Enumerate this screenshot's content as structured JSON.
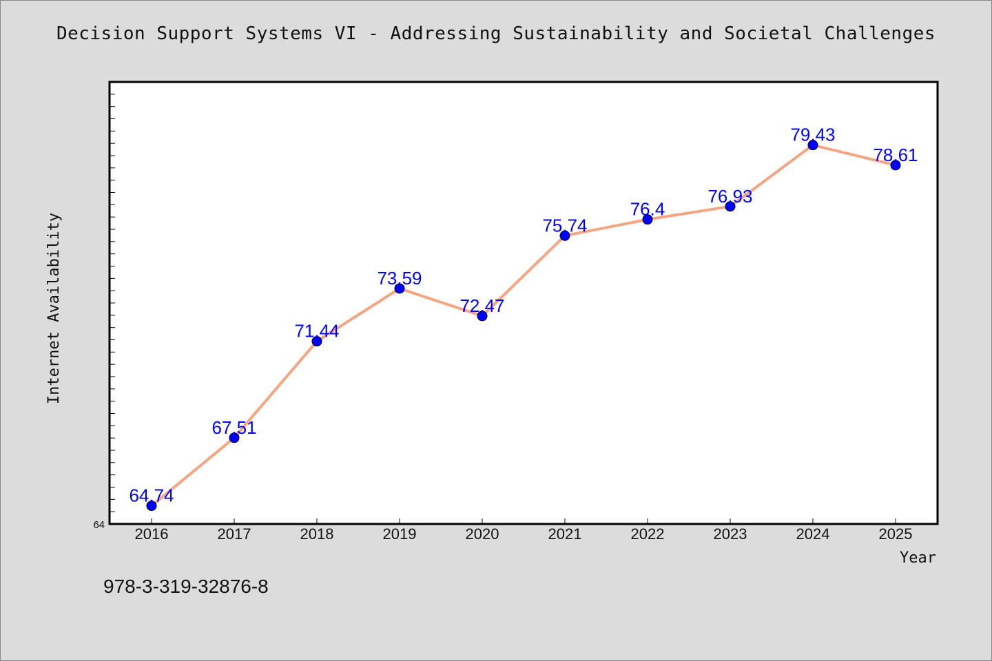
{
  "header": {
    "title": "Decision Support Systems VI - Addressing Sustainability and Societal Challenges"
  },
  "footer": {
    "isbn": "978-3-319-32876-8"
  },
  "colors": {
    "background": "#dcdcdc",
    "plot_background": "#ffffff",
    "line": "#f4a582",
    "marker": "#0000ff",
    "label": "#0000ff"
  },
  "chart_data": {
    "type": "line",
    "title": "Decision Support Systems VI - Addressing Sustainability and Societal Challenges",
    "xlabel": "Year",
    "ylabel": "Internet Availability",
    "x": [
      "2016",
      "2017",
      "2018",
      "2019",
      "2020",
      "2021",
      "2022",
      "2023",
      "2024",
      "2025"
    ],
    "series": [
      {
        "values": [
          64.74,
          67.51,
          71.44,
          73.59,
          72.47,
          75.74,
          76.4,
          76.93,
          79.43,
          78.61
        ]
      }
    ],
    "data_labels": [
      "64.74",
      "67.51",
      "71.44",
      "73.59",
      "72.47",
      "75.74",
      "76.4",
      "76.93",
      "79.43",
      "78.61"
    ],
    "ylim": [
      64,
      82
    ],
    "y_tick_labels": [
      "64"
    ],
    "grid": false,
    "legend": "none"
  }
}
